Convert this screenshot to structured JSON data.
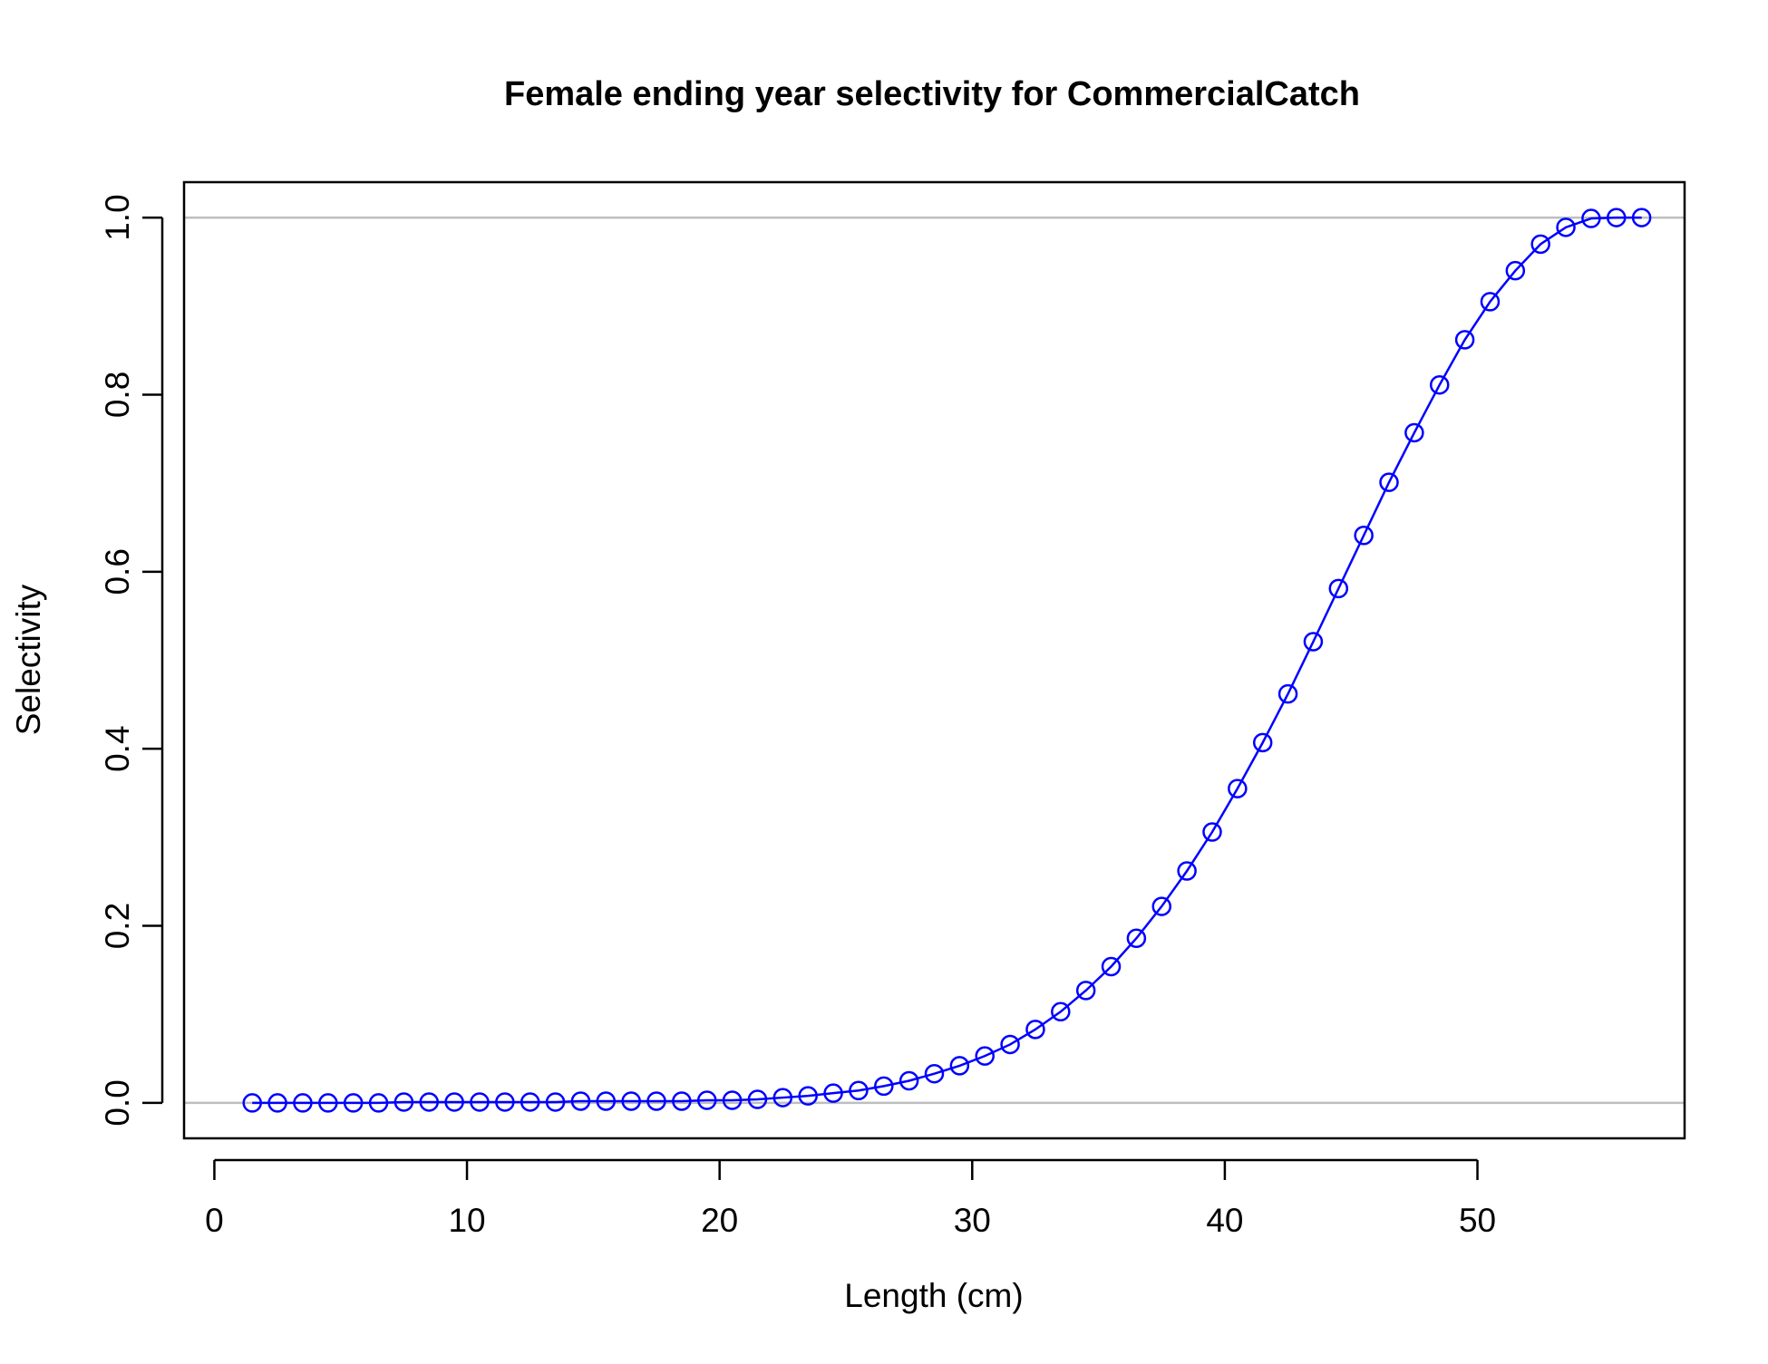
{
  "chart_data": {
    "type": "line",
    "title": "Female ending year selectivity for CommercialCatch",
    "xlabel": "Length (cm)",
    "ylabel": "Selectivity",
    "xlim": [
      -1.2,
      58.2
    ],
    "ylim": [
      -0.04,
      1.04
    ],
    "x_ticks": [
      0,
      10,
      20,
      30,
      40,
      50
    ],
    "x_tick_labels": [
      "0",
      "10",
      "20",
      "30",
      "40",
      "50"
    ],
    "y_ticks": [
      0.0,
      0.2,
      0.4,
      0.6,
      0.8,
      1.0
    ],
    "y_tick_labels": [
      "0.0",
      "0.2",
      "0.4",
      "0.6",
      "0.8",
      "1.0"
    ],
    "reference_lines": [
      0,
      1
    ],
    "grid": false,
    "series": [
      {
        "color": "#0000ff",
        "marker": "open-circle",
        "x": [
          1.5,
          2.5,
          3.5,
          4.5,
          5.5,
          6.5,
          7.5,
          8.5,
          9.5,
          10.5,
          11.5,
          12.5,
          13.5,
          14.5,
          15.5,
          16.5,
          17.5,
          18.5,
          19.5,
          20.5,
          21.5,
          22.5,
          23.5,
          24.5,
          25.5,
          26.5,
          27.5,
          28.5,
          29.5,
          30.5,
          31.5,
          32.5,
          33.5,
          34.5,
          35.5,
          36.5,
          37.5,
          38.5,
          39.5,
          40.5,
          41.5,
          42.5,
          43.5,
          44.5,
          45.5,
          46.5,
          47.5,
          48.5,
          49.5,
          50.5,
          51.5,
          52.5,
          53.5,
          54.5,
          55.5,
          56.5
        ],
        "values": [
          0.0,
          0.0,
          0.0,
          0.0,
          0.0,
          0.0,
          0.001,
          0.001,
          0.001,
          0.001,
          0.001,
          0.001,
          0.001,
          0.002,
          0.002,
          0.002,
          0.002,
          0.002,
          0.003,
          0.003,
          0.004,
          0.006,
          0.008,
          0.011,
          0.014,
          0.019,
          0.025,
          0.033,
          0.042,
          0.053,
          0.066,
          0.083,
          0.103,
          0.127,
          0.154,
          0.186,
          0.222,
          0.262,
          0.306,
          0.355,
          0.407,
          0.462,
          0.521,
          0.581,
          0.641,
          0.701,
          0.757,
          0.811,
          0.862,
          0.905,
          0.94,
          0.97,
          0.989,
          0.999,
          1.0,
          1.0
        ]
      }
    ]
  },
  "colors": {
    "series": "#0000ff",
    "reference_line": "#bebebe",
    "axis": "#000000"
  }
}
